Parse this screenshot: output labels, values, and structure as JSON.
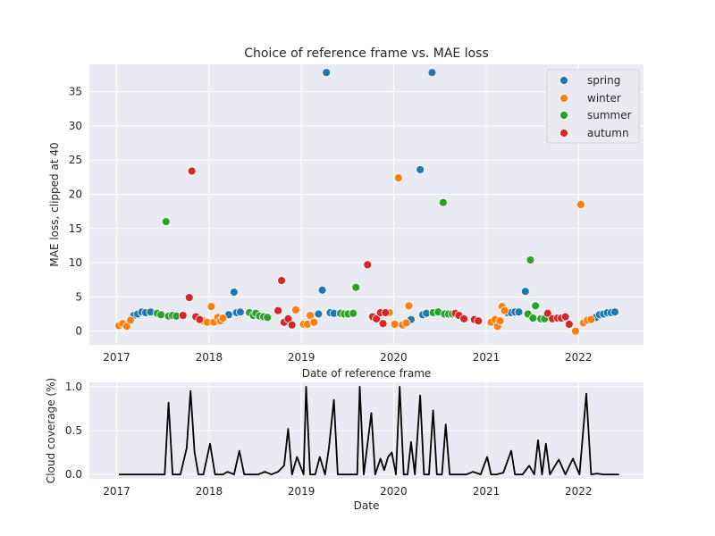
{
  "chart_data": [
    {
      "type": "scatter",
      "title": "Choice of reference frame vs. MAE loss",
      "xlabel": "Date of reference frame",
      "ylabel": "MAE loss, clipped at 40",
      "xlim": [
        "2016-09-15",
        "2022-09-15"
      ],
      "ylim": [
        -2,
        39
      ],
      "x_ticks": [
        {
          "date": "2017-01-01",
          "label": "2017"
        },
        {
          "date": "2018-01-01",
          "label": "2018"
        },
        {
          "date": "2019-01-01",
          "label": "2019"
        },
        {
          "date": "2020-01-01",
          "label": "2020"
        },
        {
          "date": "2021-01-01",
          "label": "2021"
        },
        {
          "date": "2022-01-01",
          "label": "2022"
        }
      ],
      "y_ticks": [
        0,
        5,
        10,
        15,
        20,
        25,
        30,
        35
      ],
      "grid": true,
      "legend_position": "top-right",
      "series": [
        {
          "name": "spring",
          "color": "#1f77b4",
          "points": [
            [
              "2017-03-10",
              2.3
            ],
            [
              "2017-03-25",
              2.5
            ],
            [
              "2017-04-10",
              2.8
            ],
            [
              "2017-04-25",
              2.7
            ],
            [
              "2017-05-15",
              2.8
            ],
            [
              "2018-03-20",
              2.4
            ],
            [
              "2018-04-10",
              5.7
            ],
            [
              "2018-04-20",
              2.7
            ],
            [
              "2018-05-05",
              2.8
            ],
            [
              "2019-03-10",
              2.5
            ],
            [
              "2019-03-25",
              6.0
            ],
            [
              "2019-04-10",
              37.8
            ],
            [
              "2019-04-25",
              2.7
            ],
            [
              "2019-05-10",
              2.6
            ],
            [
              "2020-03-10",
              1.7
            ],
            [
              "2020-04-15",
              23.6
            ],
            [
              "2020-04-25",
              2.4
            ],
            [
              "2020-05-10",
              2.6
            ],
            [
              "2020-06-01",
              37.8
            ],
            [
              "2021-03-25",
              2.7
            ],
            [
              "2021-04-10",
              2.7
            ],
            [
              "2021-04-25",
              2.8
            ],
            [
              "2021-05-10",
              2.8
            ],
            [
              "2021-06-05",
              5.8
            ],
            [
              "2022-03-10",
              2.0
            ],
            [
              "2022-03-25",
              2.4
            ],
            [
              "2022-04-10",
              2.5
            ],
            [
              "2022-04-25",
              2.7
            ],
            [
              "2022-05-10",
              2.7
            ],
            [
              "2022-05-25",
              2.8
            ]
          ]
        },
        {
          "name": "winter",
          "color": "#ff7f0e",
          "points": [
            [
              "2017-01-10",
              0.8
            ],
            [
              "2017-01-25",
              1.1
            ],
            [
              "2017-02-10",
              0.7
            ],
            [
              "2017-02-25",
              1.6
            ],
            [
              "2017-12-10",
              1.5
            ],
            [
              "2017-12-25",
              1.3
            ],
            [
              "2018-01-10",
              3.6
            ],
            [
              "2018-01-20",
              1.3
            ],
            [
              "2018-02-05",
              2.0
            ],
            [
              "2018-02-15",
              1.5
            ],
            [
              "2018-02-25",
              1.9
            ],
            [
              "2018-12-10",
              3.1
            ],
            [
              "2019-01-10",
              1.0
            ],
            [
              "2019-01-25",
              1.0
            ],
            [
              "2019-02-05",
              2.3
            ],
            [
              "2019-02-20",
              1.3
            ],
            [
              "2019-12-15",
              2.7
            ],
            [
              "2020-01-05",
              1.0
            ],
            [
              "2020-01-20",
              22.4
            ],
            [
              "2020-02-05",
              0.9
            ],
            [
              "2020-02-20",
              1.2
            ],
            [
              "2020-03-01",
              3.7
            ],
            [
              "2021-01-20",
              1.3
            ],
            [
              "2021-02-05",
              1.7
            ],
            [
              "2021-02-15",
              0.7
            ],
            [
              "2021-02-25",
              1.5
            ],
            [
              "2021-03-05",
              3.6
            ],
            [
              "2021-03-15",
              3.0
            ],
            [
              "2021-12-20",
              0.0
            ],
            [
              "2022-01-10",
              18.5
            ],
            [
              "2022-01-20",
              1.2
            ],
            [
              "2022-02-05",
              1.6
            ],
            [
              "2022-02-20",
              1.7
            ]
          ]
        },
        {
          "name": "summer",
          "color": "#2ca02c",
          "points": [
            [
              "2017-06-10",
              2.6
            ],
            [
              "2017-06-25",
              2.4
            ],
            [
              "2017-07-15",
              16.0
            ],
            [
              "2017-07-25",
              2.2
            ],
            [
              "2017-08-10",
              2.3
            ],
            [
              "2017-08-25",
              2.2
            ],
            [
              "2018-06-10",
              2.7
            ],
            [
              "2018-06-25",
              2.3
            ],
            [
              "2018-07-05",
              2.6
            ],
            [
              "2018-07-20",
              2.2
            ],
            [
              "2018-08-05",
              2.1
            ],
            [
              "2018-08-20",
              2.0
            ],
            [
              "2019-06-05",
              2.6
            ],
            [
              "2019-06-20",
              2.5
            ],
            [
              "2019-07-05",
              2.5
            ],
            [
              "2019-07-25",
              2.6
            ],
            [
              "2019-08-05",
              6.4
            ],
            [
              "2020-06-05",
              2.7
            ],
            [
              "2020-06-25",
              2.8
            ],
            [
              "2020-07-15",
              18.8
            ],
            [
              "2020-07-20",
              2.5
            ],
            [
              "2020-08-05",
              2.5
            ],
            [
              "2020-08-20",
              2.5
            ],
            [
              "2021-06-15",
              2.5
            ],
            [
              "2021-06-25",
              10.4
            ],
            [
              "2021-07-05",
              1.9
            ],
            [
              "2021-07-15",
              3.7
            ],
            [
              "2021-08-05",
              1.8
            ],
            [
              "2021-08-20",
              1.8
            ]
          ]
        },
        {
          "name": "autumn",
          "color": "#d62728",
          "points": [
            [
              "2017-09-20",
              2.3
            ],
            [
              "2017-10-15",
              4.9
            ],
            [
              "2017-10-25",
              23.4
            ],
            [
              "2017-11-10",
              2.1
            ],
            [
              "2017-11-25",
              1.7
            ],
            [
              "2018-10-01",
              3.0
            ],
            [
              "2018-10-15",
              7.4
            ],
            [
              "2018-10-25",
              1.3
            ],
            [
              "2018-11-10",
              1.8
            ],
            [
              "2018-11-25",
              0.9
            ],
            [
              "2019-09-20",
              9.7
            ],
            [
              "2019-10-10",
              2.1
            ],
            [
              "2019-10-25",
              1.8
            ],
            [
              "2019-11-10",
              2.7
            ],
            [
              "2019-11-20",
              1.1
            ],
            [
              "2019-11-30",
              2.7
            ],
            [
              "2020-09-01",
              2.6
            ],
            [
              "2020-09-15",
              2.3
            ],
            [
              "2020-10-05",
              1.8
            ],
            [
              "2020-11-15",
              1.7
            ],
            [
              "2020-12-01",
              1.5
            ],
            [
              "2021-09-01",
              2.6
            ],
            [
              "2021-09-20",
              1.8
            ],
            [
              "2021-10-10",
              1.9
            ],
            [
              "2021-10-25",
              1.9
            ],
            [
              "2021-11-10",
              2.1
            ],
            [
              "2021-11-25",
              1.0
            ]
          ]
        }
      ]
    },
    {
      "type": "line",
      "title": "",
      "xlabel": "Date",
      "ylabel": "Cloud coverage (%)",
      "xlim": [
        "2016-09-15",
        "2022-09-15"
      ],
      "ylim": [
        -0.05,
        1.05
      ],
      "x_ticks": [
        {
          "date": "2017-01-01",
          "label": "2017"
        },
        {
          "date": "2018-01-01",
          "label": "2018"
        },
        {
          "date": "2019-01-01",
          "label": "2019"
        },
        {
          "date": "2020-01-01",
          "label": "2020"
        },
        {
          "date": "2021-01-01",
          "label": "2021"
        },
        {
          "date": "2022-01-01",
          "label": "2022"
        }
      ],
      "y_ticks": [
        {
          "value": 0.0,
          "label": "0.0"
        },
        {
          "value": 0.5,
          "label": "0.5"
        },
        {
          "value": 1.0,
          "label": "1.0"
        }
      ],
      "grid": true,
      "series": [
        {
          "color": "#000000",
          "points": [
            [
              "2017-01-10",
              0.0
            ],
            [
              "2017-03-01",
              0.0
            ],
            [
              "2017-05-01",
              0.0
            ],
            [
              "2017-06-15",
              0.0
            ],
            [
              "2017-07-10",
              0.0
            ],
            [
              "2017-07-25",
              0.82
            ],
            [
              "2017-08-10",
              0.0
            ],
            [
              "2017-09-10",
              0.0
            ],
            [
              "2017-10-05",
              0.3
            ],
            [
              "2017-10-20",
              0.95
            ],
            [
              "2017-11-05",
              0.25
            ],
            [
              "2017-11-20",
              0.0
            ],
            [
              "2017-12-10",
              0.0
            ],
            [
              "2018-01-05",
              0.35
            ],
            [
              "2018-01-25",
              0.0
            ],
            [
              "2018-02-25",
              0.0
            ],
            [
              "2018-03-15",
              0.03
            ],
            [
              "2018-04-10",
              0.0
            ],
            [
              "2018-05-01",
              0.27
            ],
            [
              "2018-05-20",
              0.0
            ],
            [
              "2018-07-15",
              0.0
            ],
            [
              "2018-08-10",
              0.03
            ],
            [
              "2018-09-05",
              0.0
            ],
            [
              "2018-10-01",
              0.03
            ],
            [
              "2018-10-25",
              0.1
            ],
            [
              "2018-11-10",
              0.52
            ],
            [
              "2018-11-25",
              0.0
            ],
            [
              "2018-12-15",
              0.2
            ],
            [
              "2019-01-10",
              0.0
            ],
            [
              "2019-01-20",
              1.0
            ],
            [
              "2019-02-05",
              0.0
            ],
            [
              "2019-02-25",
              0.0
            ],
            [
              "2019-03-15",
              0.2
            ],
            [
              "2019-04-05",
              0.0
            ],
            [
              "2019-04-20",
              0.3
            ],
            [
              "2019-05-10",
              0.85
            ],
            [
              "2019-05-25",
              0.0
            ],
            [
              "2019-06-20",
              0.0
            ],
            [
              "2019-07-15",
              0.0
            ],
            [
              "2019-08-10",
              0.0
            ],
            [
              "2019-08-20",
              1.0
            ],
            [
              "2019-09-05",
              0.0
            ],
            [
              "2019-10-05",
              0.7
            ],
            [
              "2019-10-20",
              0.0
            ],
            [
              "2019-11-10",
              0.18
            ],
            [
              "2019-11-25",
              0.05
            ],
            [
              "2019-12-10",
              0.2
            ],
            [
              "2019-12-25",
              0.25
            ],
            [
              "2020-01-10",
              0.0
            ],
            [
              "2020-01-25",
              1.0
            ],
            [
              "2020-02-10",
              0.0
            ],
            [
              "2020-02-25",
              0.0
            ],
            [
              "2020-03-10",
              0.37
            ],
            [
              "2020-03-25",
              0.0
            ],
            [
              "2020-04-15",
              0.9
            ],
            [
              "2020-04-30",
              0.0
            ],
            [
              "2020-05-20",
              0.0
            ],
            [
              "2020-06-05",
              0.73
            ],
            [
              "2020-06-20",
              0.0
            ],
            [
              "2020-07-10",
              0.0
            ],
            [
              "2020-07-25",
              0.57
            ],
            [
              "2020-08-10",
              0.0
            ],
            [
              "2020-09-15",
              0.0
            ],
            [
              "2020-10-15",
              0.0
            ],
            [
              "2020-11-10",
              0.03
            ],
            [
              "2020-12-10",
              0.0
            ],
            [
              "2021-01-05",
              0.2
            ],
            [
              "2021-01-20",
              0.0
            ],
            [
              "2021-02-10",
              0.0
            ],
            [
              "2021-03-10",
              0.02
            ],
            [
              "2021-04-10",
              0.27
            ],
            [
              "2021-04-25",
              0.0
            ],
            [
              "2021-05-25",
              0.0
            ],
            [
              "2021-06-20",
              0.1
            ],
            [
              "2021-07-10",
              0.0
            ],
            [
              "2021-07-25",
              0.39
            ],
            [
              "2021-08-10",
              0.0
            ],
            [
              "2021-08-25",
              0.35
            ],
            [
              "2021-09-10",
              0.0
            ],
            [
              "2021-10-15",
              0.17
            ],
            [
              "2021-11-10",
              0.0
            ],
            [
              "2021-12-10",
              0.18
            ],
            [
              "2022-01-05",
              0.0
            ],
            [
              "2022-02-01",
              0.92
            ],
            [
              "2022-02-20",
              0.0
            ],
            [
              "2022-03-15",
              0.01
            ],
            [
              "2022-04-10",
              0.0
            ],
            [
              "2022-05-15",
              0.0
            ],
            [
              "2022-06-10",
              0.0
            ]
          ]
        }
      ]
    }
  ]
}
